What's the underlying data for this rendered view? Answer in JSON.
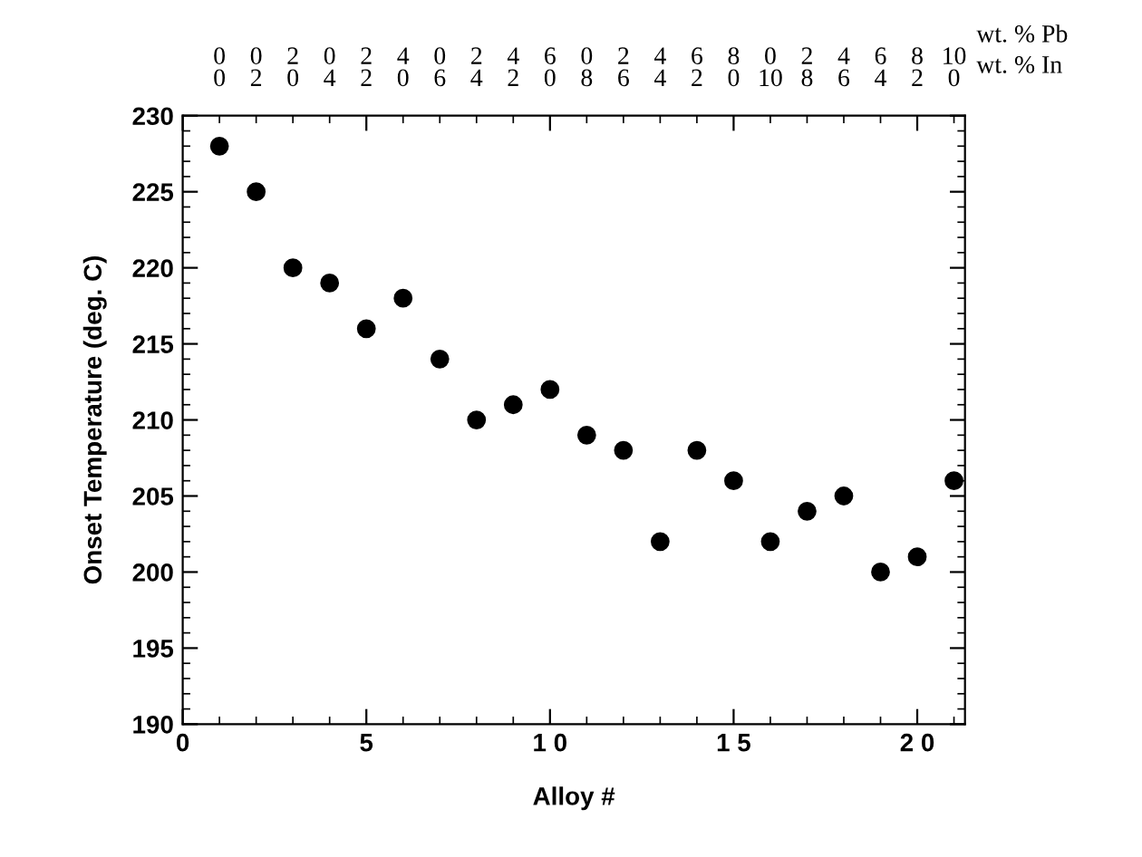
{
  "chart_data": {
    "type": "scatter",
    "xlabel": "Alloy #",
    "ylabel": "Onset Temperature (deg. C)",
    "x": [
      1,
      2,
      3,
      4,
      5,
      6,
      7,
      8,
      9,
      10,
      11,
      12,
      13,
      14,
      15,
      16,
      17,
      18,
      19,
      20,
      21
    ],
    "series": [
      {
        "color": "#000000",
        "values": [
          228,
          225,
          220,
          219,
          216,
          218,
          214,
          210,
          211,
          212,
          209,
          208,
          202,
          208,
          206,
          202,
          204,
          205,
          200,
          201,
          206
        ]
      }
    ],
    "marker": "circle",
    "xlim": [
      0,
      21.3
    ],
    "xticks": [
      0,
      5,
      {
        "value": 10,
        "label": "1 0"
      },
      {
        "value": 15,
        "label": "1 5"
      },
      {
        "value": 20,
        "label": "2 0"
      }
    ],
    "ylim": [
      190,
      230
    ],
    "yticks": [
      190,
      195,
      200,
      205,
      210,
      215,
      220,
      225,
      230
    ],
    "annotations": [
      {
        "text": "0\n0",
        "x": 1
      },
      {
        "text": "0\n2",
        "x": 2
      },
      {
        "text": "2\n0",
        "x": 3
      },
      {
        "text": "0\n4",
        "x": 4
      },
      {
        "text": "2\n2",
        "x": 5
      },
      {
        "text": "4\n0",
        "x": 6
      },
      {
        "text": "0\n6",
        "x": 7
      },
      {
        "text": "2\n4",
        "x": 8
      },
      {
        "text": "4\n2",
        "x": 9
      },
      {
        "text": "6\n0",
        "x": 10
      },
      {
        "text": "0\n8",
        "x": 11
      },
      {
        "text": "2\n6",
        "x": 12
      },
      {
        "text": "4\n4",
        "x": 13
      },
      {
        "text": "6\n2",
        "x": 14
      },
      {
        "text": "8\n0",
        "x": 15
      },
      {
        "text": "0\n10",
        "x": 16
      },
      {
        "text": "2\n8",
        "x": 17
      },
      {
        "text": "4\n6",
        "x": 18
      },
      {
        "text": "6\n4",
        "x": 19
      },
      {
        "text": "8\n2",
        "x": 20
      },
      {
        "text": "10\n0",
        "x": 21
      },
      "wt. % Pb",
      "wt. % In"
    ],
    "grid": false,
    "legend": false
  }
}
